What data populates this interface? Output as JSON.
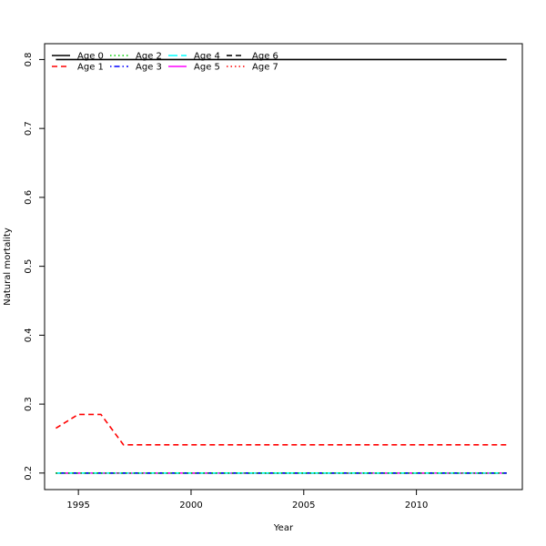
{
  "chart_data": {
    "type": "line",
    "title": "",
    "xlabel": "Year",
    "ylabel": "Natural mortality",
    "xlim": [
      1993.5,
      2014.7
    ],
    "ylim": [
      0.176,
      0.823
    ],
    "x_ticks": [
      1995,
      2000,
      2005,
      2010
    ],
    "y_ticks": [
      0.2,
      0.3,
      0.4,
      0.5,
      0.6,
      0.7,
      0.8
    ],
    "legend_position": "top-left",
    "x": [
      1994,
      1995,
      1996,
      1997,
      1998,
      1999,
      2000,
      2001,
      2002,
      2003,
      2004,
      2005,
      2006,
      2007,
      2008,
      2009,
      2010,
      2011,
      2012,
      2013,
      2014
    ],
    "series": [
      {
        "name": "Age 0",
        "color": "#000000",
        "dash": "solid",
        "values": [
          0.8,
          0.8,
          0.8,
          0.8,
          0.8,
          0.8,
          0.8,
          0.8,
          0.8,
          0.8,
          0.8,
          0.8,
          0.8,
          0.8,
          0.8,
          0.8,
          0.8,
          0.8,
          0.8,
          0.8,
          0.8
        ]
      },
      {
        "name": "Age 1",
        "color": "#ff0000",
        "dash": "dashed",
        "values": [
          0.265,
          0.285,
          0.285,
          0.241,
          0.241,
          0.241,
          0.241,
          0.241,
          0.241,
          0.241,
          0.241,
          0.241,
          0.241,
          0.241,
          0.241,
          0.241,
          0.241,
          0.241,
          0.241,
          0.241,
          0.241
        ]
      },
      {
        "name": "Age 2",
        "color": "#00cd00",
        "dash": "dotted",
        "values": [
          0.2,
          0.2,
          0.2,
          0.2,
          0.2,
          0.2,
          0.2,
          0.2,
          0.2,
          0.2,
          0.2,
          0.2,
          0.2,
          0.2,
          0.2,
          0.2,
          0.2,
          0.2,
          0.2,
          0.2,
          0.2
        ]
      },
      {
        "name": "Age 3",
        "color": "#0000ff",
        "dash": "dotdash",
        "values": [
          0.2,
          0.2,
          0.2,
          0.2,
          0.2,
          0.2,
          0.2,
          0.2,
          0.2,
          0.2,
          0.2,
          0.2,
          0.2,
          0.2,
          0.2,
          0.2,
          0.2,
          0.2,
          0.2,
          0.2,
          0.2
        ]
      },
      {
        "name": "Age 4",
        "color": "#00ffff",
        "dash": "longdash",
        "values": [
          0.2,
          0.2,
          0.2,
          0.2,
          0.2,
          0.2,
          0.2,
          0.2,
          0.2,
          0.2,
          0.2,
          0.2,
          0.2,
          0.2,
          0.2,
          0.2,
          0.2,
          0.2,
          0.2,
          0.2,
          0.2
        ]
      },
      {
        "name": "Age 5",
        "color": "#ff00ff",
        "dash": "solid",
        "values": [
          0.2,
          0.2,
          0.2,
          0.2,
          0.2,
          0.2,
          0.2,
          0.2,
          0.2,
          0.2,
          0.2,
          0.2,
          0.2,
          0.2,
          0.2,
          0.2,
          0.2,
          0.2,
          0.2,
          0.2,
          0.2
        ]
      },
      {
        "name": "Age 6",
        "color": "#000000",
        "dash": "dashed",
        "values": [
          0.2,
          0.2,
          0.2,
          0.2,
          0.2,
          0.2,
          0.2,
          0.2,
          0.2,
          0.2,
          0.2,
          0.2,
          0.2,
          0.2,
          0.2,
          0.2,
          0.2,
          0.2,
          0.2,
          0.2,
          0.2
        ]
      },
      {
        "name": "Age 7",
        "color": "#ff0000",
        "dash": "dotted",
        "values": [
          0.2,
          0.2,
          0.2,
          0.2,
          0.2,
          0.2,
          0.2,
          0.2,
          0.2,
          0.2,
          0.2,
          0.2,
          0.2,
          0.2,
          0.2,
          0.2,
          0.2,
          0.2,
          0.2,
          0.2,
          0.2
        ]
      }
    ]
  }
}
